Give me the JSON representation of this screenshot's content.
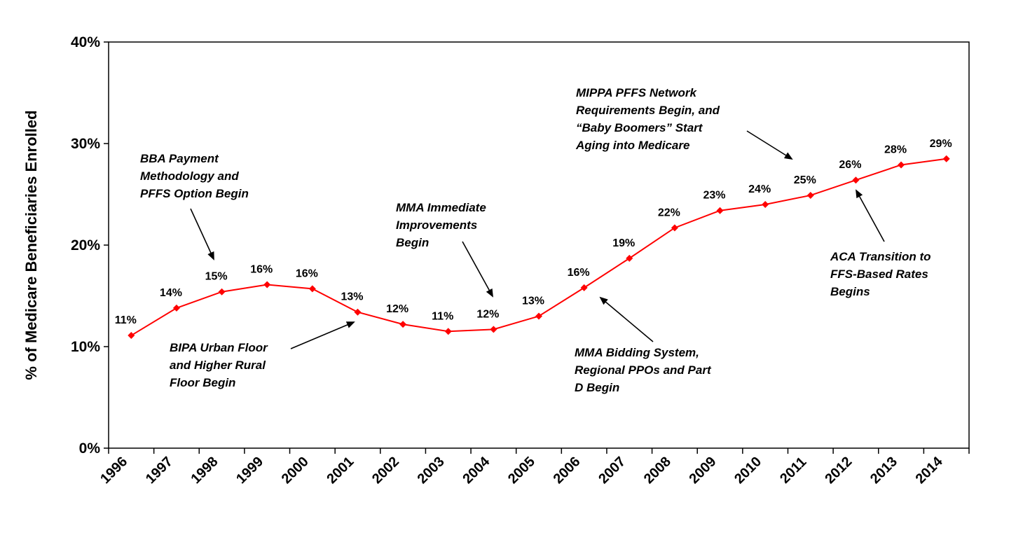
{
  "chart_data": {
    "type": "line",
    "title": "",
    "xlabel": "",
    "ylabel": "% of Medicare Beneficiaries Enrolled",
    "ylim": [
      0,
      40
    ],
    "yticks": [
      "0%",
      "10%",
      "20%",
      "30%",
      "40%"
    ],
    "grid": false,
    "legend": "none",
    "x": [
      "1996",
      "1997",
      "1998",
      "1999",
      "2000",
      "2001",
      "2002",
      "2003",
      "2004",
      "2005",
      "2006",
      "2007",
      "2008",
      "2009",
      "2010",
      "2011",
      "2012",
      "2013",
      "2014"
    ],
    "series": [
      {
        "color": "#ff0000",
        "values": [
          11.1,
          13.8,
          15.4,
          16.1,
          15.7,
          13.4,
          12.2,
          11.5,
          11.7,
          13.0,
          15.8,
          18.7,
          21.7,
          23.4,
          24.0,
          24.9,
          26.4,
          27.9,
          28.5
        ],
        "labels": [
          "11%",
          "14%",
          "15%",
          "16%",
          "16%",
          "13%",
          "12%",
          "11%",
          "12%",
          "13%",
          "16%",
          "19%",
          "22%",
          "23%",
          "24%",
          "25%",
          "26%",
          "28%",
          "29%"
        ]
      }
    ],
    "annotations": [
      {
        "lines": [
          "BBA Payment",
          "Methodology and",
          "PFFS Option Begin"
        ],
        "target_index": 2
      },
      {
        "lines": [
          "BIPA Urban Floor",
          "and Higher Rural",
          "Floor Begin"
        ],
        "target_index": 5
      },
      {
        "lines": [
          "MMA Immediate",
          "Improvements",
          "Begin"
        ],
        "target_index": 8
      },
      {
        "lines": [
          "MMA Bidding System,",
          "Regional PPOs and Part",
          "D Begin"
        ],
        "target_index": 10
      },
      {
        "lines": [
          "MIPPA PFFS Network",
          "Requirements Begin, and",
          "“Baby Boomers” Start",
          "Aging into Medicare"
        ],
        "target_index": 15
      },
      {
        "lines": [
          "ACA Transition to",
          "FFS-Based Rates",
          "Begins"
        ],
        "target_index": 16
      }
    ]
  }
}
